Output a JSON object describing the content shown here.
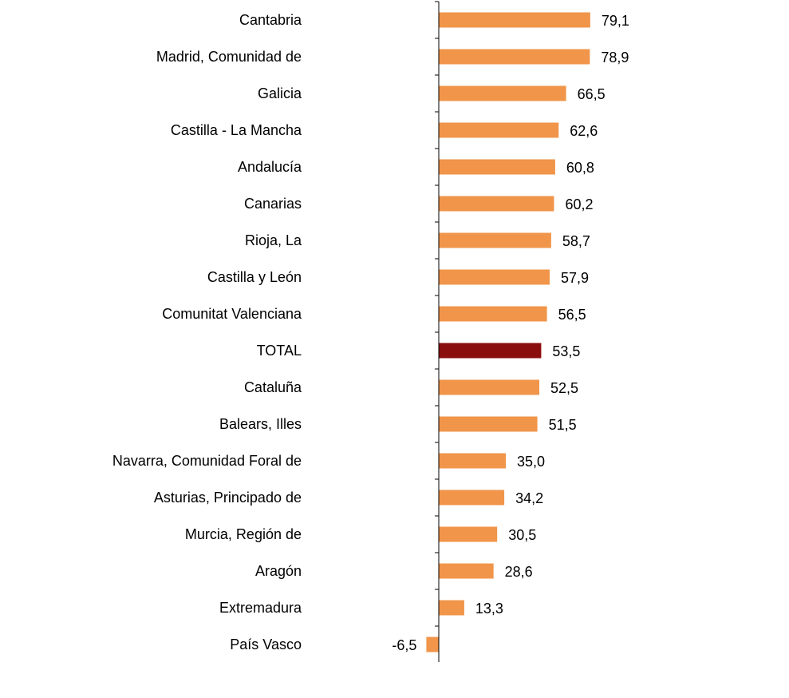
{
  "chart_data": {
    "type": "bar",
    "orientation": "horizontal",
    "categories": [
      "Cantabria",
      "Madrid, Comunidad de",
      "Galicia",
      "Castilla - La Mancha",
      "Andalucía",
      "Canarias",
      "Rioja, La",
      "Castilla y León",
      "Comunitat Valenciana",
      "TOTAL",
      "Cataluña",
      "Balears, Illes",
      "Navarra, Comunidad Foral de",
      "Asturias, Principado de",
      "Murcia, Región de",
      "Aragón",
      "Extremadura",
      "País Vasco"
    ],
    "values": [
      79.1,
      78.9,
      66.5,
      62.6,
      60.8,
      60.2,
      58.7,
      57.9,
      56.5,
      53.5,
      52.5,
      51.5,
      35.0,
      34.2,
      30.5,
      28.6,
      13.3,
      -6.5
    ],
    "value_labels": [
      "79,1",
      "78,9",
      "66,5",
      "62,6",
      "60,8",
      "60,2",
      "58,7",
      "57,9",
      "56,5",
      "53,5",
      "52,5",
      "51,5",
      "35,0",
      "34,2",
      "30,5",
      "28,6",
      "13,3",
      "-6,5"
    ],
    "highlight_category": "TOTAL",
    "colors": {
      "bar": "#F0954A",
      "highlight": "#8B0E0E",
      "axis": "#000000"
    },
    "title": "",
    "xlabel": "",
    "ylabel": "",
    "legend": false,
    "grid": false
  }
}
